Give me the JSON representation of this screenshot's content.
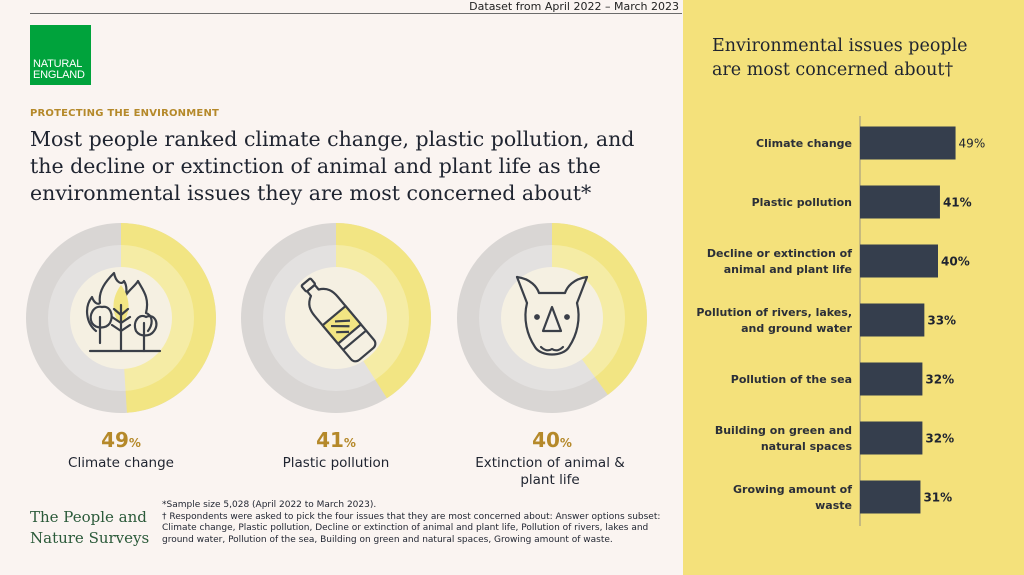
{
  "header": {
    "dataset_note": "Dataset from April 2022 – March 2023",
    "logo_line1": "NATURAL",
    "logo_line2": "ENGLAND"
  },
  "intro": {
    "kicker": "PROTECTING THE ENVIRONMENT",
    "headline": "Most people ranked climate change, plastic pollution, and the decline or extinction of animal and plant life as the environmental issues they are most concerned about*"
  },
  "highlights": [
    {
      "value": "49",
      "unit": "%",
      "label": "Climate change",
      "fraction": 0.49,
      "icon": "wildfire-trees-icon"
    },
    {
      "value": "41",
      "unit": "%",
      "label": "Plastic pollution",
      "fraction": 0.41,
      "icon": "plastic-bottle-icon"
    },
    {
      "value": "40",
      "unit": "%",
      "label": "Extinction of animal & plant life",
      "fraction": 0.4,
      "icon": "rhino-icon"
    }
  ],
  "footer": {
    "brand_line1": "The People and",
    "brand_line2": "Nature Surveys",
    "note1": "*Sample size 5,028 (April 2022 to March 2023).",
    "note2": "† Respondents were asked to pick the four issues that they are most concerned about: Answer options subset: Climate change, Plastic pollution, Decline or extinction of animal and plant life, Pollution of rivers, lakes and ground water, Pollution of the sea, Building on green and natural spaces, Growing amount of waste."
  },
  "panel": {
    "title": "Environmental issues people are most concerned about†"
  },
  "colors": {
    "bar": "#353e4d",
    "panel_bg": "#f4e17b",
    "donut_fill": "#f2e583",
    "donut_track": "#d9d6d4",
    "accent": "#b5892a",
    "logo_green": "#00a33c"
  },
  "chart_data": {
    "type": "bar",
    "orientation": "horizontal",
    "title": "Environmental issues people are most concerned about†",
    "categories": [
      [
        "Climate change"
      ],
      [
        "Plastic pollution"
      ],
      [
        "Decline or extinction of",
        "animal and plant life"
      ],
      [
        "Pollution of rivers, lakes,",
        "and ground water"
      ],
      [
        "Pollution of the sea"
      ],
      [
        "Building on green and",
        "natural spaces"
      ],
      [
        "Growing amount of",
        "waste"
      ]
    ],
    "values": [
      49,
      41,
      40,
      33,
      32,
      32,
      31
    ],
    "value_labels": [
      "49%",
      "41%",
      "40%",
      "33%",
      "32%",
      "32%",
      "31%"
    ],
    "xlim": [
      0,
      100
    ],
    "grid": false
  }
}
